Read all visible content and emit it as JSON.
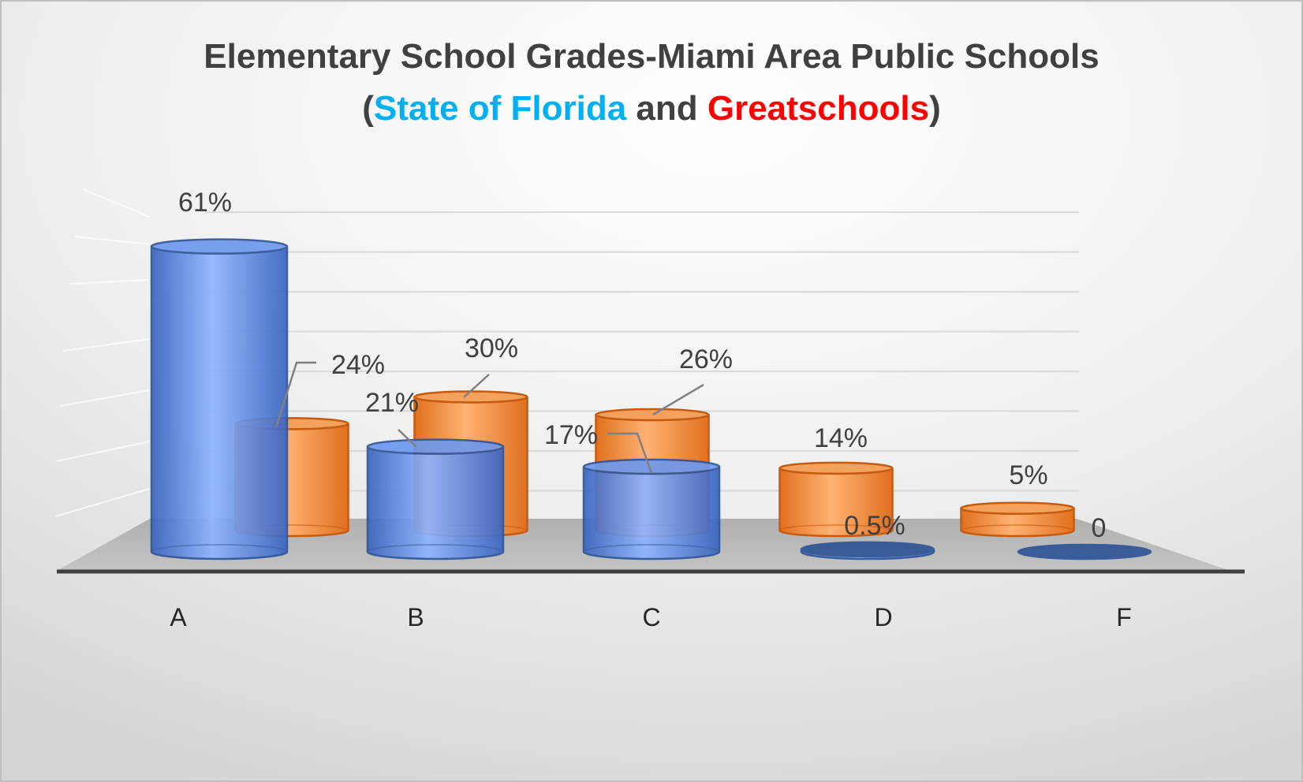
{
  "chart_data": {
    "type": "bar",
    "title_line1": "Elementary School Grades-Miami Area Public Schools",
    "title_line2": {
      "open": "(",
      "series_a": "State of Florida",
      "joiner": " and ",
      "series_b": "Greatschools",
      "close": ")"
    },
    "categories": [
      "A",
      "B",
      "C",
      "D",
      "F"
    ],
    "series": [
      {
        "name": "State of Florida",
        "values": [
          61,
          21,
          17,
          0.5,
          0
        ],
        "labels": [
          "61%",
          "21%",
          "17%",
          "0.5%",
          "0"
        ],
        "color": "#4472C4"
      },
      {
        "name": "Greatschools",
        "values": [
          24,
          30,
          26,
          14,
          5
        ],
        "labels": [
          "24%",
          "30%",
          "26%",
          "14%",
          "5%"
        ],
        "color": "#ED7D31"
      }
    ],
    "ylim": [
      0,
      70
    ],
    "grid": true,
    "legend": "none",
    "colors": {
      "title_series_a": "#00B0F0",
      "title_series_b": "#FF0000",
      "title": "#404040"
    }
  }
}
